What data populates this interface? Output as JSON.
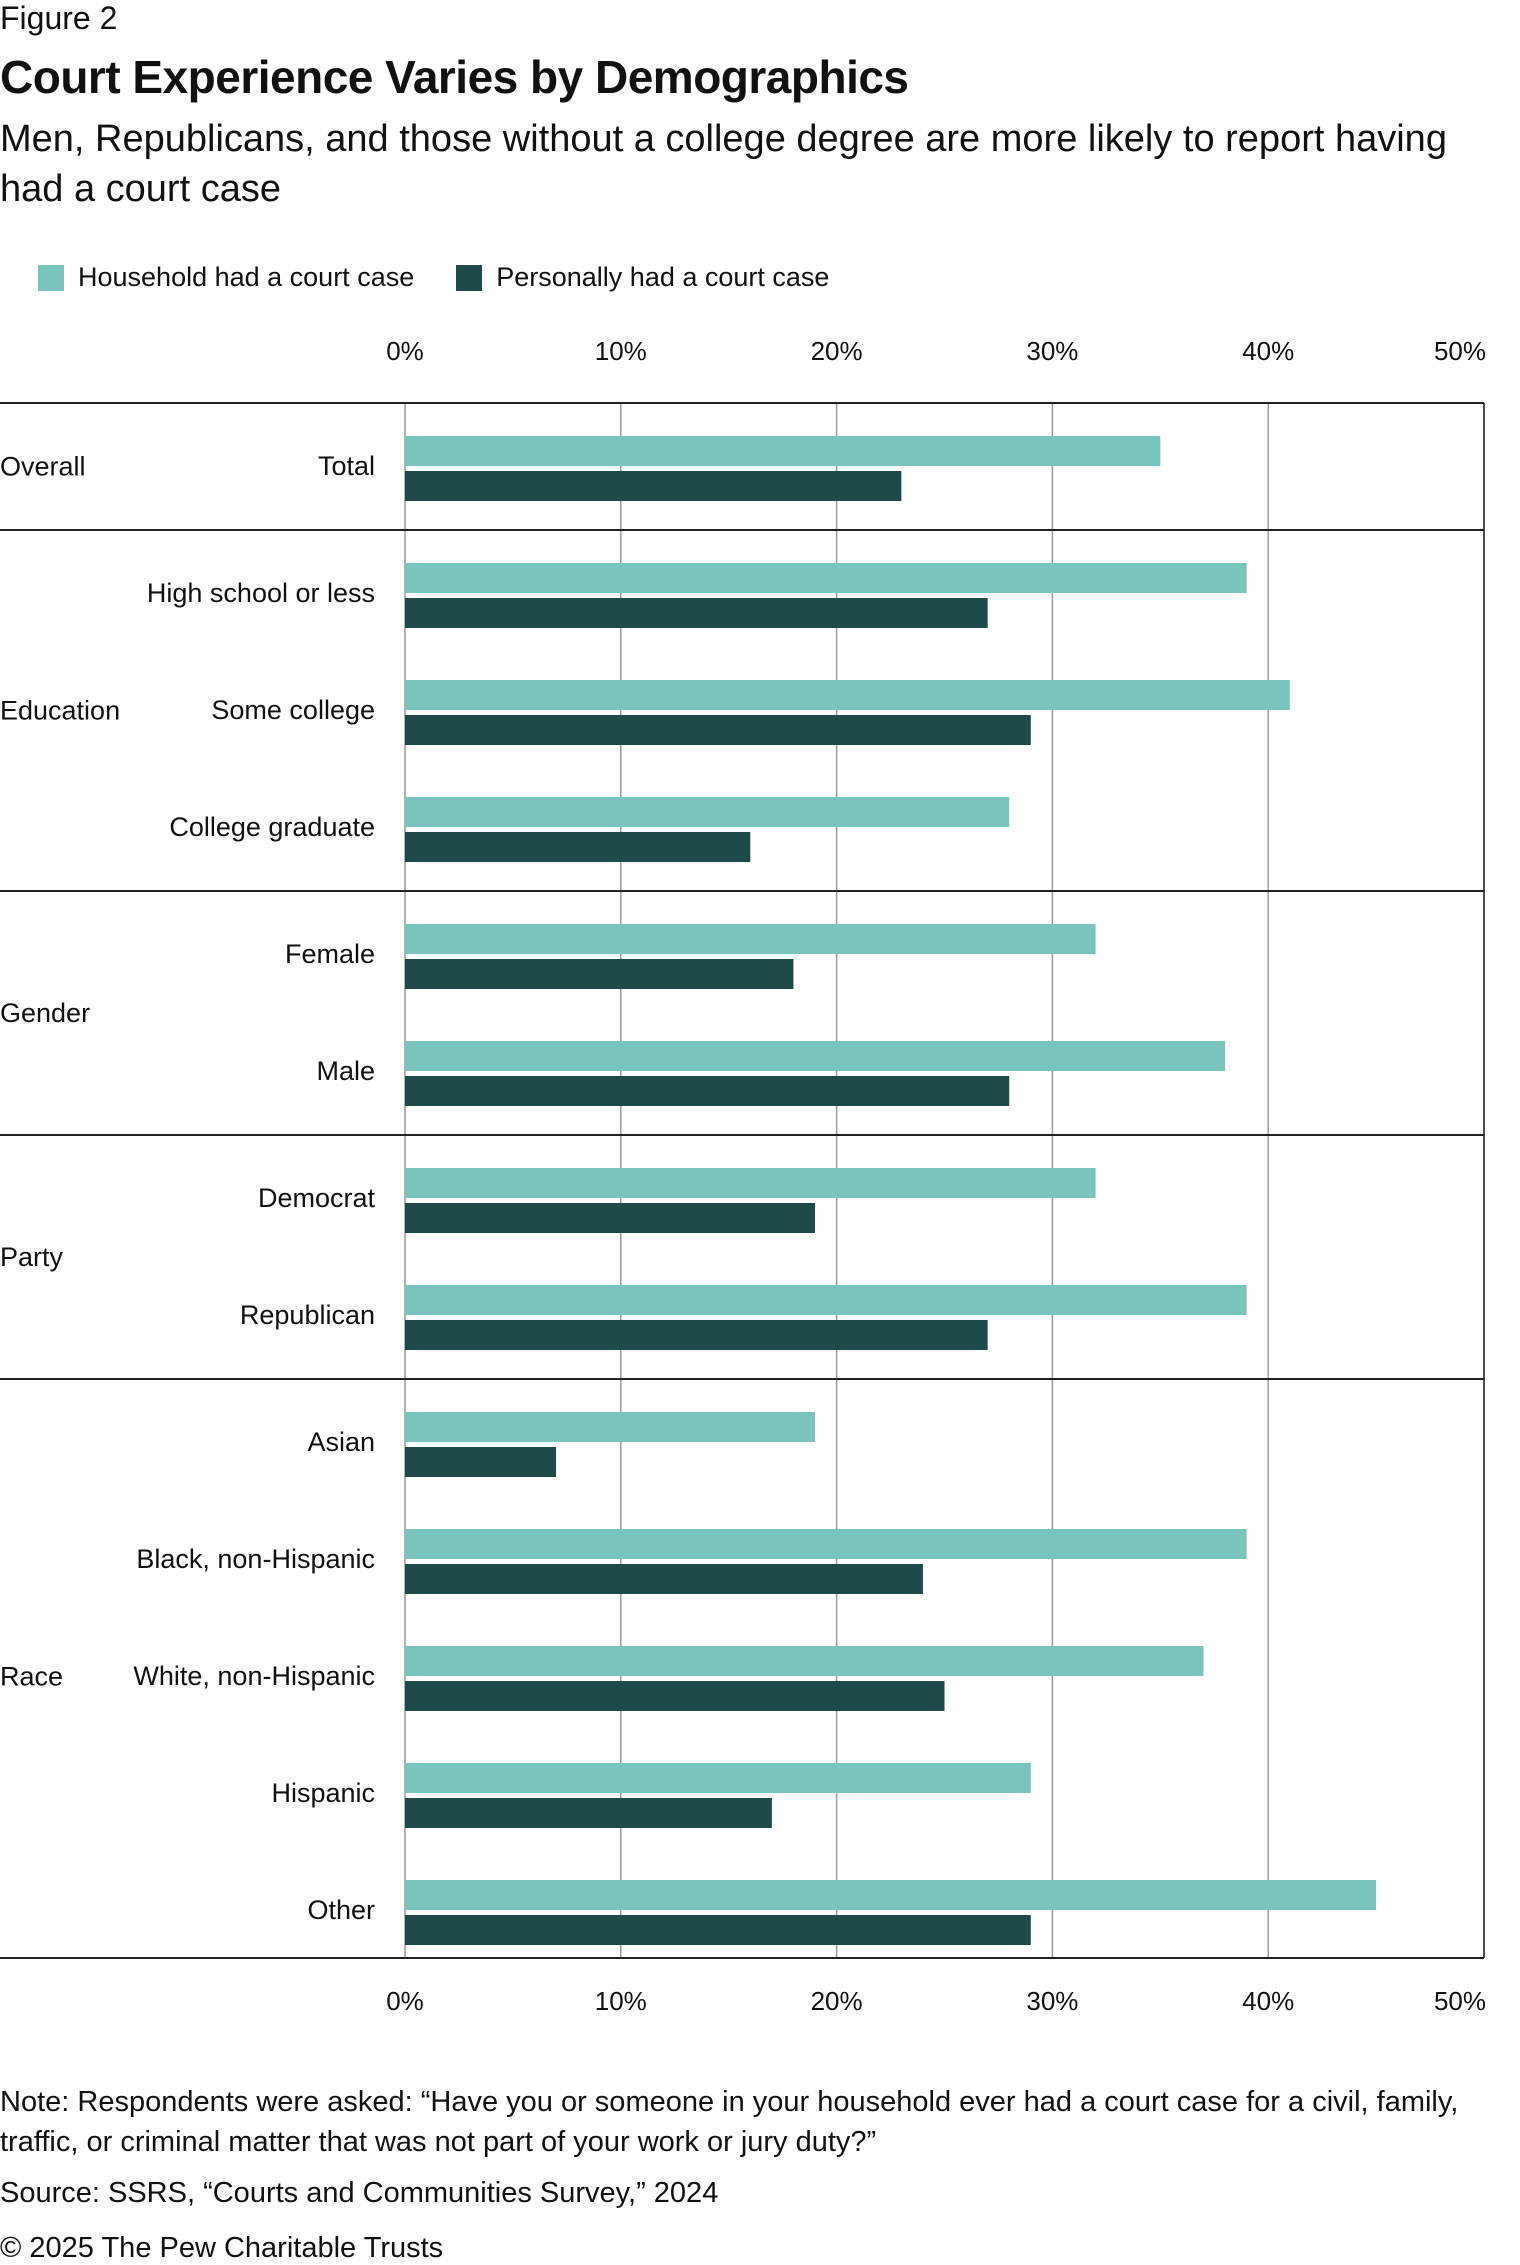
{
  "figure_label": "Figure 2",
  "title": "Court Experience Varies by Demographics",
  "subtitle": "Men, Republicans, and those without a college degree are more likely to report having had a court case",
  "legend": [
    {
      "label": "Household had a court case",
      "color": "#79c5bd"
    },
    {
      "label": "Personally had a court case",
      "color": "#1f4a4a"
    }
  ],
  "chart_data": {
    "type": "bar",
    "orientation": "horizontal",
    "title": "Court Experience Varies by Demographics",
    "xlim": [
      0,
      50
    ],
    "ticks": [
      "0%",
      "10%",
      "20%",
      "30%",
      "40%",
      "50%"
    ],
    "tick_values": [
      0,
      10,
      20,
      30,
      40,
      50
    ],
    "grid": true,
    "legend_position": "top-left",
    "groups": [
      {
        "name": "Overall",
        "categories": [
          "Total"
        ]
      },
      {
        "name": "Education",
        "categories": [
          "High school or less",
          "Some college",
          "College graduate"
        ]
      },
      {
        "name": "Gender",
        "categories": [
          "Female",
          "Male"
        ]
      },
      {
        "name": "Party",
        "categories": [
          "Democrat",
          "Republican"
        ]
      },
      {
        "name": "Race",
        "categories": [
          "Asian",
          "Black, non-Hispanic",
          "White, non-Hispanic",
          "Hispanic",
          "Other"
        ]
      }
    ],
    "categories": [
      "Total",
      "High school or less",
      "Some college",
      "College graduate",
      "Female",
      "Male",
      "Democrat",
      "Republican",
      "Asian",
      "Black, non-Hispanic",
      "White, non-Hispanic",
      "Hispanic",
      "Other"
    ],
    "series": [
      {
        "name": "Household had a court case",
        "color": "#79c5bd",
        "values": [
          35,
          39,
          41,
          28,
          32,
          38,
          32,
          39,
          19,
          39,
          37,
          29,
          45
        ]
      },
      {
        "name": "Personally had a court case",
        "color": "#1f4a4a",
        "values": [
          23,
          27,
          29,
          16,
          18,
          28,
          19,
          27,
          7,
          24,
          25,
          17,
          29
        ]
      }
    ]
  },
  "note": "Note: Respondents were asked: “Have you or someone in your household ever had a court case for a civil, family, traffic, or criminal matter that was not part of your work or jury duty?”",
  "source": "Source: SSRS, “Courts and Communities Survey,” 2024",
  "copyright": "© 2025 The Pew Charitable Trusts"
}
